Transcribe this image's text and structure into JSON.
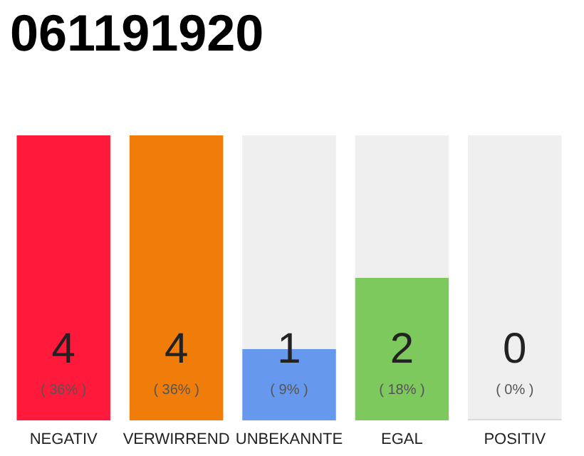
{
  "chart_data": {
    "type": "bar",
    "title": "061191920",
    "stacked": true,
    "tick_labels": "x",
    "categories": [
      "NEGATIV",
      "VERWIRREND",
      "UNBEKANNTE",
      "EGAL",
      "POSITIV"
    ],
    "series": [
      {
        "colors": [
          "#ff1a3c",
          "#f07d0a",
          "#6699ee",
          "#7dc95e",
          "#d9d9d9"
        ],
        "values": [
          4,
          4,
          1,
          2,
          0
        ],
        "value_labels": [
          "4\n( 36% )",
          "4\n( 36% )",
          "1\n( 9% )",
          "2\n( 18% )",
          "0\n( 0% )"
        ]
      },
      {
        "color": "#efefef",
        "values": [
          0,
          0,
          3,
          2,
          4
        ]
      }
    ]
  }
}
